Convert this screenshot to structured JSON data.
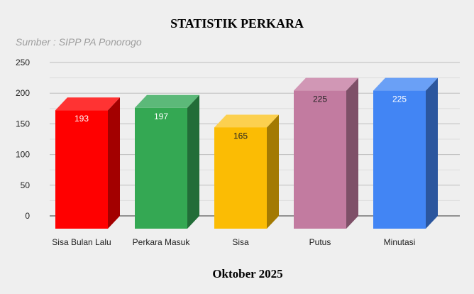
{
  "chart_data": {
    "type": "bar",
    "style": "3d",
    "title": "STATISTIK PERKARA",
    "subtitle": "Sumber : SIPP PA Ponorogo",
    "xlabel": "Oktober 2025",
    "ylabel": "",
    "ylim": [
      0,
      250
    ],
    "yticks": [
      0,
      50,
      100,
      150,
      200,
      250
    ],
    "grid": true,
    "categories": [
      "Sisa Bulan Lalu",
      "Perkara Masuk",
      "Sisa",
      "Putus",
      "Minutasi"
    ],
    "values": [
      193,
      197,
      165,
      225,
      225
    ],
    "colors": [
      {
        "front": "#ff0000",
        "top": "#ff3333",
        "side": "#a30000",
        "label": "#ffffff"
      },
      {
        "front": "#34a853",
        "top": "#5cb979",
        "side": "#226d38",
        "label": "#ffffff"
      },
      {
        "front": "#fbbc04",
        "top": "#fcd04f",
        "side": "#a37a03",
        "label": "#222222"
      },
      {
        "front": "#c27ba0",
        "top": "#d197b5",
        "side": "#7e5068",
        "label": "#222222"
      },
      {
        "front": "#4285f4",
        "top": "#6aa0f6",
        "side": "#2b569e",
        "label": "#ffffff"
      }
    ]
  }
}
